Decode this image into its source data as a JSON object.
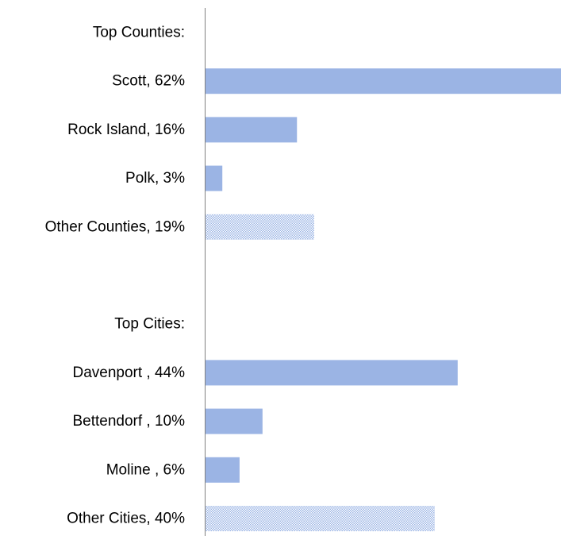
{
  "chart_data": {
    "type": "bar",
    "orientation": "horizontal",
    "categories": [
      "Top Counties:",
      "Scott, 62%",
      "Rock Island, 16%",
      "Polk, 3%",
      "Other Counties, 19%",
      "",
      "Top Cities:",
      "Davenport , 44%",
      "Bettendorf , 10%",
      "Moline , 6%",
      "Other Cities, 40%"
    ],
    "values": [
      null,
      62,
      16,
      3,
      19,
      null,
      null,
      44,
      10,
      6,
      40
    ],
    "patterned": [
      false,
      false,
      false,
      false,
      true,
      false,
      false,
      false,
      false,
      false,
      true
    ],
    "xlim": [
      0,
      62
    ],
    "grid": false,
    "legend": "none",
    "title": "",
    "xlabel": "",
    "ylabel": "",
    "colors": {
      "bar": "#9bb4e4",
      "pattern_base": "#ffffff",
      "pattern_dot": "#9bb4e4",
      "axis": "#808080"
    }
  }
}
